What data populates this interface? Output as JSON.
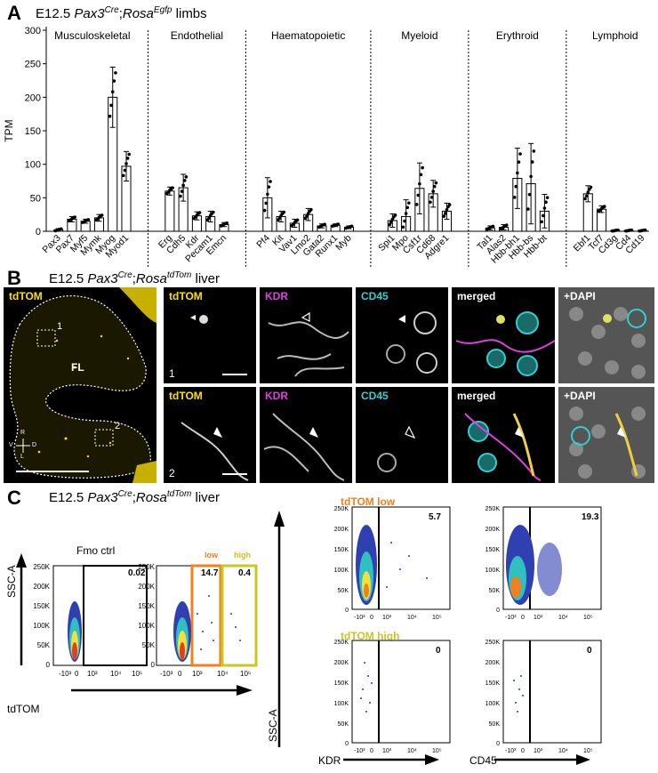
{
  "panelA": {
    "letter": "A",
    "heading_pre": "E12.5 ",
    "heading_gene": "Pax3",
    "heading_sup1": "Cre",
    "heading_mid": ";",
    "heading_gene2": "Rosa",
    "heading_sup2": "Egfp",
    "heading_post": " limbs"
  },
  "chart_data": {
    "type": "bar",
    "ylabel": "TPM",
    "ylim": [
      0,
      300
    ],
    "yticks": [
      0,
      50,
      100,
      150,
      200,
      250,
      300
    ],
    "groups": [
      {
        "name": "Musculoskeletal",
        "categories": [
          "Pax3",
          "Pax7",
          "Myf5",
          "Mymk",
          "Myog",
          "Myod1"
        ],
        "values": [
          2,
          18,
          15,
          20,
          200,
          97
        ],
        "errors": [
          2,
          4,
          3,
          5,
          45,
          22
        ]
      },
      {
        "name": "Endothelial",
        "categories": [
          "Erg",
          "Cdh5",
          "Kdr",
          "Pecam1",
          "Emcn"
        ],
        "values": [
          60,
          65,
          23,
          22,
          10
        ],
        "errors": [
          6,
          20,
          6,
          8,
          3
        ]
      },
      {
        "name": "Haematopoietic",
        "categories": [
          "Pf4",
          "Kit",
          "Vav1",
          "Lmo2",
          "Gata2",
          "Runx1",
          "Myb"
        ],
        "values": [
          50,
          22,
          12,
          25,
          8,
          9,
          6
        ],
        "errors": [
          30,
          8,
          6,
          9,
          3,
          2,
          2
        ]
      },
      {
        "name": "Myeloid",
        "categories": [
          "Spi1",
          "Mpo",
          "Csf1r",
          "Cd68",
          "Adgre1"
        ],
        "values": [
          16,
          22,
          64,
          56,
          30
        ],
        "errors": [
          10,
          25,
          38,
          20,
          12
        ]
      },
      {
        "name": "Erythroid",
        "categories": [
          "Tal1",
          "Alas2",
          "Hbb-bh1",
          "Hbb-bs",
          "Hbb-bt"
        ],
        "values": [
          5,
          6,
          79,
          71,
          30
        ],
        "errors": [
          3,
          4,
          45,
          60,
          25
        ]
      },
      {
        "name": "Lymphoid",
        "categories": [
          "Ebf1",
          "Tcf7",
          "Cd3g",
          "Cd4",
          "Cd19"
        ],
        "values": [
          56,
          33,
          1,
          1,
          1
        ],
        "errors": [
          12,
          5,
          1,
          1,
          1
        ]
      }
    ],
    "group_dividers": "dotted",
    "grid": false
  },
  "panelB": {
    "letter": "B",
    "heading_pre": "E12.5 ",
    "heading_gene": "Pax3",
    "heading_sup1": "Cre",
    "heading_mid": ";",
    "heading_gene2": "Rosa",
    "heading_sup2": "tdTom",
    "heading_post": " liver",
    "overview_label": "tdTOM",
    "fl_label": "FL",
    "roi1": "1",
    "roi2": "2",
    "compass": {
      "r": "R",
      "l": "L",
      "v": "V",
      "d": "D"
    },
    "columns": [
      "tdTOM",
      "KDR",
      "CD45",
      "merged",
      "+DAPI"
    ],
    "row1_num": "1",
    "row2_num": "2",
    "colors": {
      "tdtom": "#ffe000",
      "kdr": "#e040e0",
      "cd45": "#30d0d0",
      "white": "#ffffff"
    }
  },
  "panelC": {
    "letter": "C",
    "heading_pre": "E12.5 ",
    "heading_gene": "Pax3",
    "heading_sup1": "Cre",
    "heading_mid": ";",
    "heading_gene2": "Rosa",
    "heading_sup2": "tdTom",
    "heading_post": " liver",
    "fmo_label": "Fmo ctrl",
    "fmo_gate": "0.02",
    "low_label": "low",
    "high_label": "high",
    "low_value": "14.7",
    "high_value": "0.4",
    "yaxis": "SSC-A",
    "xaxis_tdtom": "tdTOM",
    "xaxis_kdr": "KDR",
    "xaxis_cd45": "CD45",
    "tdtom_low_title": "tdTOM low",
    "tdtom_high_title": "tdTOM high",
    "kdr_low_value": "5.7",
    "cd45_low_value": "19.3",
    "kdr_high_value": "0",
    "cd45_high_value": "0",
    "yticks": [
      "250K",
      "200K",
      "150K",
      "100K",
      "50K",
      "0"
    ],
    "xticks": [
      "-10³",
      "0",
      "10³",
      "10⁴",
      "10⁵"
    ],
    "colors": {
      "low": "#f08020",
      "high": "#c8c820",
      "dots": "#2a3aa0"
    }
  }
}
